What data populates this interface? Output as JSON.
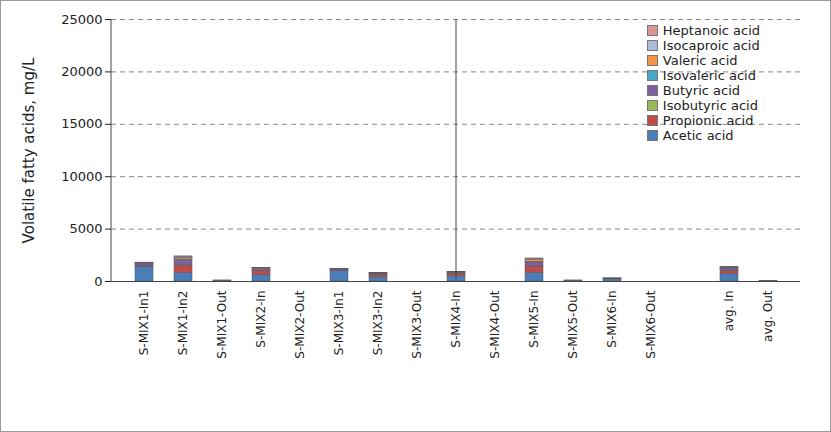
{
  "chart_data": {
    "type": "bar",
    "stacked": true,
    "grid": true,
    "legend": "top-right",
    "y_label": "Volatile fatty acids, mg/L",
    "categories": [
      "S-MIX1-In1",
      "S-MIX1-In2",
      "S-MIX1-Out",
      "S-MIX2-In",
      "S-MIX2-Out",
      "S-MIX3-In1",
      "S-MIX3-In2",
      "S-MIX3-Out",
      "S-MIX4-In",
      "S-MIX4-Out",
      "S-MIX5-In",
      "S-MIX5-Out",
      "S-MIX6-In",
      "S-MIX6-Out",
      null,
      "avg. In",
      "avg. Out"
    ],
    "ylim": [
      0,
      25000
    ],
    "yticks": [
      0,
      5000,
      10000,
      15000,
      20000,
      25000
    ],
    "series": [
      {
        "name": "Acetic acid",
        "color": "#4a7ebb",
        "values": [
          1400,
          800,
          80,
          600,
          0,
          1000,
          400,
          0,
          500,
          0,
          800,
          80,
          200,
          0,
          null,
          700,
          50
        ]
      },
      {
        "name": "Propionic acid",
        "color": "#be4b48",
        "values": [
          100,
          700,
          0,
          400,
          0,
          50,
          200,
          0,
          200,
          0,
          600,
          0,
          50,
          0,
          null,
          300,
          0
        ]
      },
      {
        "name": "Isobutyric acid",
        "color": "#98b954",
        "values": [
          20,
          50,
          0,
          20,
          0,
          10,
          20,
          0,
          20,
          0,
          30,
          0,
          0,
          0,
          null,
          20,
          0
        ]
      },
      {
        "name": "Butyric acid",
        "color": "#7d60a0",
        "values": [
          200,
          500,
          20,
          150,
          0,
          100,
          100,
          0,
          100,
          0,
          400,
          20,
          30,
          0,
          null,
          200,
          10
        ]
      },
      {
        "name": "Isovaleric acid",
        "color": "#46aac5",
        "values": [
          20,
          50,
          0,
          30,
          0,
          10,
          20,
          0,
          20,
          0,
          50,
          0,
          0,
          0,
          null,
          30,
          0
        ]
      },
      {
        "name": "Valeric acid",
        "color": "#f69240",
        "values": [
          30,
          150,
          0,
          60,
          0,
          20,
          30,
          0,
          30,
          0,
          200,
          0,
          10,
          0,
          null,
          60,
          0
        ]
      },
      {
        "name": "Isocaproic acid",
        "color": "#aabad7",
        "values": [
          10,
          100,
          0,
          20,
          0,
          10,
          10,
          0,
          10,
          0,
          70,
          0,
          0,
          0,
          null,
          30,
          0
        ]
      },
      {
        "name": "Heptanoic acid",
        "color": "#d99694",
        "values": [
          20,
          50,
          0,
          20,
          0,
          0,
          20,
          0,
          20,
          0,
          50,
          0,
          10,
          0,
          null,
          60,
          0
        ]
      }
    ]
  }
}
